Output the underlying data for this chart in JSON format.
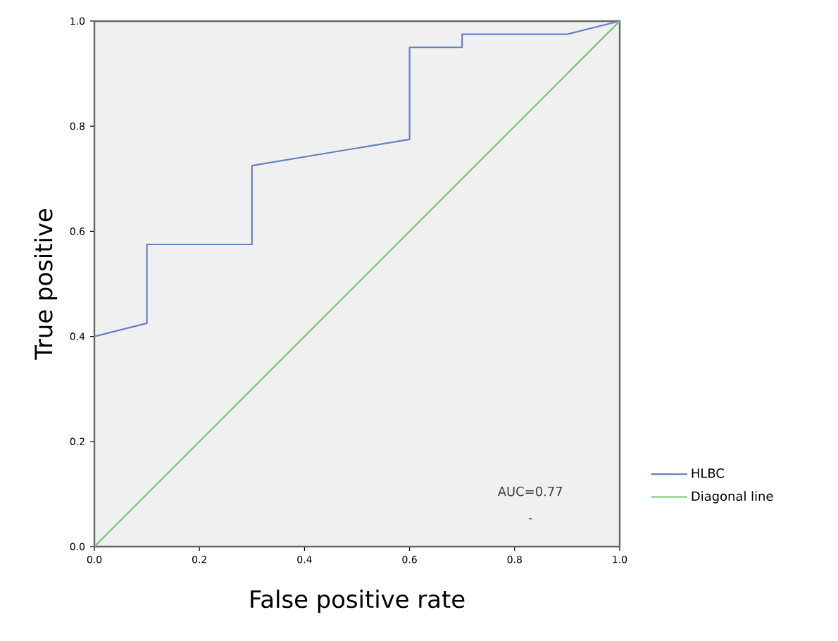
{
  "chart_data": {
    "type": "line",
    "xlabel": "False positive rate",
    "ylabel": "True positive",
    "xlim": [
      0,
      1
    ],
    "ylim": [
      0,
      1
    ],
    "xticks": [
      {
        "value": 0,
        "label": "0.0"
      },
      0.2,
      0.4,
      0.6,
      0.8,
      {
        "value": 1,
        "label": "1.0"
      }
    ],
    "yticks": [
      {
        "value": 0,
        "label": "0.0"
      },
      0.2,
      0.4,
      0.6,
      0.8,
      {
        "value": 1,
        "label": "1.0"
      }
    ],
    "legend": "bottom right",
    "annotations": [
      "AUC=0.77",
      "-"
    ],
    "series": [
      {
        "name": "HLBC",
        "color": "#6a7fc4",
        "x": [
          0,
          0.1,
          0.1,
          0.3,
          0.3,
          0.6,
          0.6,
          0.7,
          0.7,
          0.9,
          1
        ],
        "values": [
          0.4,
          0.425,
          0.575,
          0.575,
          0.725,
          0.775,
          0.95,
          0.95,
          0.975,
          0.975,
          1
        ]
      },
      {
        "name": "Diagonal line",
        "color": "#6cc86c",
        "x": [
          0,
          1
        ],
        "values": [
          0,
          1
        ]
      }
    ]
  }
}
